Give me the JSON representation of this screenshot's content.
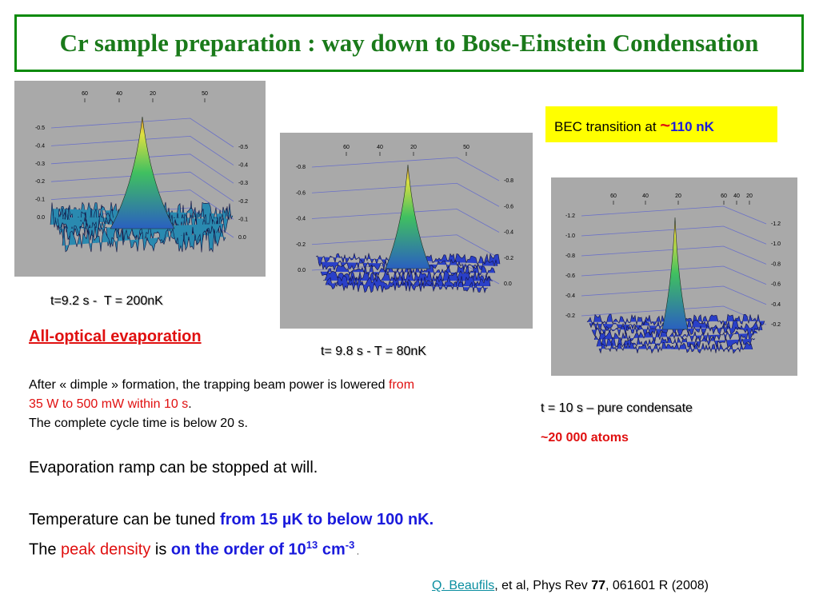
{
  "title": "Cr sample preparation : way down to Bose-Einstein Condensation",
  "plots": [
    {
      "top_labels": [
        "60",
        "40",
        "20",
        "50"
      ],
      "left_labels": [
        "-0.5",
        "-0.4",
        "-0.3",
        "-0.2",
        "-0.1",
        "0.0"
      ],
      "right_labels": [
        "-0.5",
        "-0.4",
        "-0.3",
        "-0.2",
        "-0.1",
        "0.0"
      ],
      "caption": "t=9.2 s -  T = 200nK"
    },
    {
      "top_labels": [
        "60",
        "40",
        "20",
        "50"
      ],
      "left_labels": [
        "-0.8",
        "-0.6",
        "-0.4",
        "-0.2",
        "0.0"
      ],
      "right_labels": [
        "-0.8",
        "-0.6",
        "-0.4",
        "-0.2",
        "0.0"
      ],
      "caption": "t= 9.8 s - T = 80nK"
    },
    {
      "top_labels": [
        "60",
        "40",
        "20",
        "60",
        "40",
        "20"
      ],
      "left_labels": [
        "-1.2",
        "-1.0",
        "-0.8",
        "-0.6",
        "-0.4",
        "-0.2"
      ],
      "right_labels": [
        "-1.2",
        "-1.0",
        "-0.8",
        "-0.6",
        "-0.4",
        "-0.2"
      ],
      "caption": "t = 10 s – pure condensate"
    }
  ],
  "bec_box": {
    "prefix": "BEC transition at ",
    "symbol": "~",
    "value": "110 nK"
  },
  "atoms": "~20 000 atoms",
  "heading": "All-optical evaporation",
  "paragraph": {
    "a": "After « dimple » formation, the trapping beam power is lowered ",
    "b": "from 35 W to 500 mW within 10 s",
    "c": ".",
    "d": "The complete cycle time is below 20 s."
  },
  "ramp": "Evaporation ramp can be stopped at will.",
  "temperature": {
    "a": "Temperature can be tuned ",
    "b": "from 15 µK to below 100 nK."
  },
  "density": {
    "a": "The ",
    "b": "peak density",
    "c": " is ",
    "d": "on the order of 10",
    "e": "13",
    "f": " cm",
    "g": "-3",
    "h": " ."
  },
  "citation": {
    "author": "Q. Beaufils",
    "a": ", et al, Phys Rev ",
    "volume": "77",
    "b": ", 061601 R (2008)"
  }
}
